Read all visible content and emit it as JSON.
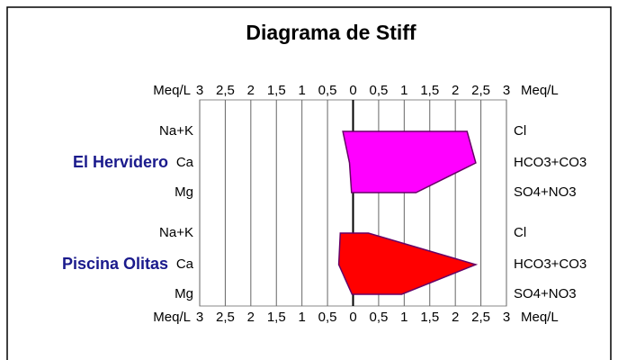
{
  "chart_data": {
    "type": "stiff",
    "title": "Diagrama de Stiff",
    "axis_label": "Meq/L",
    "xlim": [
      -3,
      3
    ],
    "xticks": [
      {
        "value": -3,
        "label": "3"
      },
      {
        "value": -2.5,
        "label": "2,5"
      },
      {
        "value": -2,
        "label": "2"
      },
      {
        "value": -1.5,
        "label": "1,5"
      },
      {
        "value": -1,
        "label": "1"
      },
      {
        "value": -0.5,
        "label": "0,5"
      },
      0,
      {
        "value": 0.5,
        "label": "0,5"
      },
      1,
      {
        "value": 1.5,
        "label": "1,5"
      },
      2,
      {
        "value": 2.5,
        "label": "2,5"
      },
      3
    ],
    "cations": [
      "Na+K",
      "Ca",
      "Mg"
    ],
    "anions": [
      "Cl",
      "HCO3+CO3",
      "SO4+NO3"
    ],
    "series": [
      {
        "name": "El Hervidero",
        "color": "#ff00ff",
        "cations": [
          0.2,
          0.07,
          0.03
        ],
        "anions": [
          2.23,
          2.4,
          1.23
        ]
      },
      {
        "name": "Piscina Olitas",
        "color": "#ff0000",
        "cations": [
          0.25,
          0.28,
          0.02
        ],
        "anions": [
          0.3,
          2.4,
          0.95
        ]
      }
    ]
  }
}
